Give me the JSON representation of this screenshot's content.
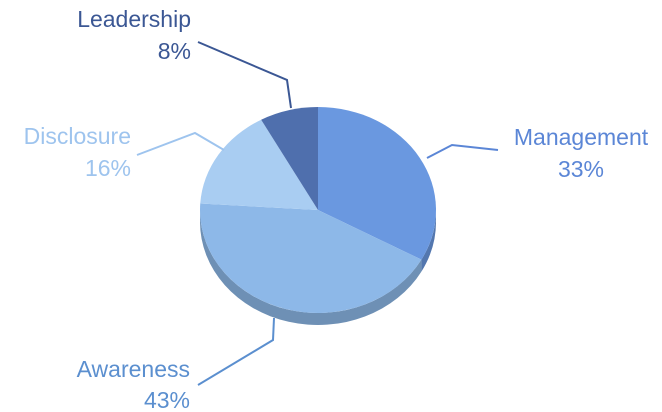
{
  "chart_data": {
    "type": "pie",
    "style": "3d-tilted",
    "title": "",
    "slices": [
      {
        "label": "Management",
        "value": 33,
        "value_label": "33%",
        "color": "#6a98e0",
        "label_color": "#5b86d6"
      },
      {
        "label": "Awareness",
        "value": 43,
        "value_label": "43%",
        "color": "#8db8e8",
        "label_color": "#5b8fcf"
      },
      {
        "label": "Disclosure",
        "value": 16,
        "value_label": "16%",
        "color": "#a9cdf2",
        "label_color": "#9ec4ee"
      },
      {
        "label": "Leadership",
        "value": 8,
        "value_label": "8%",
        "color": "#4f6fad",
        "label_color": "#3b5794"
      }
    ],
    "legend": "none",
    "data_labels": "outside with leader lines"
  }
}
